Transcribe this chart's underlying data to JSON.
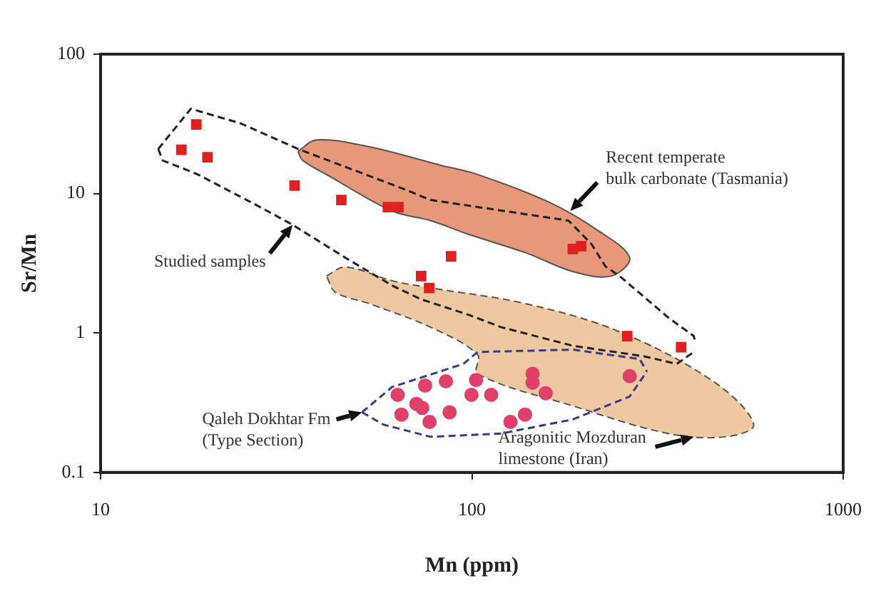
{
  "chart_data": {
    "type": "scatter",
    "xlabel": "Mn (ppm)",
    "ylabel": "Sr/Mn",
    "log": "xy",
    "xlim": [
      10,
      1000
    ],
    "ylim": [
      0.1,
      100
    ],
    "xticks": [
      10,
      100,
      1000
    ],
    "yticks": [
      0.1,
      1,
      10,
      100
    ],
    "grid": false,
    "legend": false,
    "series": [
      {
        "marker": "square",
        "color": "#e02020",
        "x": [
          18.1,
          16.5,
          19.4,
          33.3,
          44.5,
          59.4,
          63.4,
          87.9,
          73,
          76.7,
          187,
          197,
          262,
          366
        ],
        "values": [
          31.3,
          20.6,
          18.2,
          11.4,
          9.0,
          8.0,
          8.0,
          3.55,
          2.56,
          2.1,
          4.0,
          4.2,
          0.95,
          0.79
        ]
      },
      {
        "marker": "circle",
        "color": "#e0406a",
        "x": [
          63.1,
          74.8,
          85.1,
          102.6,
          99.7,
          70.9,
          73.5,
          64.6,
          76.9,
          87.1,
          112.7,
          127,
          139,
          145.7,
          145.7,
          158,
          266
        ],
        "values": [
          0.36,
          0.42,
          0.45,
          0.46,
          0.36,
          0.31,
          0.29,
          0.26,
          0.23,
          0.27,
          0.36,
          0.23,
          0.26,
          0.51,
          0.44,
          0.37,
          0.49
        ]
      },
      {
        "type": "line",
        "color": "#222222",
        "line_style": "dashed",
        "x": [
          14.3,
          17.5,
          23.9,
          34,
          64.9,
          77.4,
          182,
          210,
          229,
          250,
          338,
          396,
          400
        ],
        "values": [
          20.9,
          40.6,
          31.8,
          20.9,
          10.9,
          9.0,
          6.4,
          4.34,
          3.0,
          2.56,
          1.29,
          0.95,
          0.84
        ]
      },
      {
        "type": "line",
        "color": "#222222",
        "line_style": "dashed",
        "x": [
          14.3,
          14.7,
          18.3,
          26.9,
          32.9,
          45.6,
          61,
          72.8,
          98,
          120,
          187,
          291,
          356,
          396
        ],
        "values": [
          20.9,
          17.3,
          13.7,
          8.0,
          5.97,
          3.47,
          2.19,
          1.75,
          1.35,
          1.1,
          0.81,
          0.68,
          0.6,
          0.73
        ]
      },
      {
        "type": "line",
        "color": "#3a3a8c",
        "line_style": "dashed",
        "x": [
          50.6,
          61,
          94.8,
          103.6,
          187,
          283,
          296
        ],
        "values": [
          0.27,
          0.41,
          0.6,
          0.73,
          0.76,
          0.65,
          0.53
        ]
      },
      {
        "type": "line",
        "color": "#3a3a8c",
        "line_style": "dashed",
        "x": [
          50.6,
          57.8,
          77.4,
          120,
          187,
          266,
          296
        ],
        "values": [
          0.27,
          0.22,
          0.18,
          0.19,
          0.24,
          0.35,
          0.53
        ]
      },
      {
        "type": "area",
        "color": "#e8987a",
        "line_style": "solid",
        "x": [
          34,
          38.2,
          52.8,
          82.2,
          103.6,
          161,
          217,
          266,
          237,
          187,
          140,
          98,
          77.4,
          61,
          40.6,
          35,
          34
        ],
        "values": [
          20.1,
          24.3,
          21.7,
          16.0,
          13.7,
          8.7,
          5.5,
          3.47,
          2.56,
          2.76,
          3.75,
          5.1,
          6.4,
          7.5,
          13.7,
          17.3,
          20.1
        ]
      },
      {
        "type": "area",
        "color": "#eec8a0",
        "line_style": "dashed",
        "x": [
          40.6,
          45.6,
          61,
          77.4,
          140,
          250,
          452,
          574,
          481,
          338,
          187,
          103.6,
          103.6,
          77.4,
          53,
          42.9,
          40.6
        ],
        "values": [
          2.56,
          2.98,
          2.37,
          2.11,
          1.62,
          1.02,
          0.44,
          0.22,
          0.18,
          0.19,
          0.3,
          0.51,
          0.7,
          1.1,
          1.62,
          1.96,
          2.56
        ]
      }
    ],
    "annotations": [
      {
        "text": "Studied samples",
        "x": 32.9,
        "y": 5.97
      },
      {
        "text": "Recent temperate\nbulk carbonate (Tasmania)",
        "x": 184,
        "y": 7.5
      },
      {
        "text": "Qaleh Dokhtar Fm\n(Type Section)",
        "x": 50.6,
        "y": 0.27
      },
      {
        "text": "Aragonitic Mozduran\nlimestone (Iran)",
        "x": 396,
        "y": 0.18
      }
    ]
  }
}
